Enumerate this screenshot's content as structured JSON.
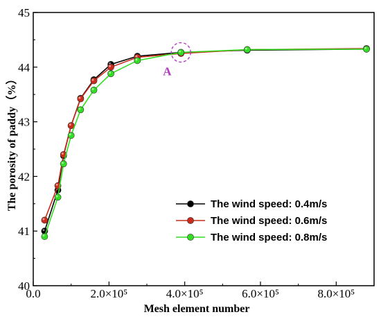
{
  "chart_data": {
    "type": "line",
    "xlabel": "Mesh element number",
    "ylabel": "The porosity of paddy（%）",
    "xlim": [
      0,
      900000
    ],
    "ylim": [
      40,
      45
    ],
    "x_ticks": [
      0,
      200000,
      400000,
      600000,
      800000
    ],
    "x_tick_labels": [
      "0.0",
      "2.0×10⁵",
      "4.0×10⁵",
      "6.0×10⁵",
      "8.0×10⁵"
    ],
    "y_ticks": [
      40,
      41,
      42,
      43,
      44,
      45
    ],
    "y_tick_labels": [
      "40",
      "41",
      "42",
      "43",
      "44",
      "45"
    ],
    "legend_position": "bottom-right",
    "series": [
      {
        "name": "The wind speed: 0.4m/s",
        "color": "#000000",
        "x": [
          30000,
          65000,
          80000,
          100000,
          125000,
          160000,
          205000,
          275000,
          390000,
          565000,
          880000
        ],
        "y": [
          41.0,
          41.75,
          42.38,
          42.93,
          43.43,
          43.77,
          44.05,
          44.2,
          44.27,
          44.31,
          44.33
        ]
      },
      {
        "name": "The wind speed: 0.6m/s",
        "color": "#cc2a1a",
        "x": [
          30000,
          65000,
          80000,
          100000,
          125000,
          160000,
          205000,
          275000,
          390000,
          565000,
          880000
        ],
        "y": [
          41.2,
          41.83,
          42.4,
          42.93,
          43.42,
          43.75,
          44.0,
          44.18,
          44.25,
          44.32,
          44.34
        ]
      },
      {
        "name": "The wind speed: 0.8m/s",
        "color": "#33dd22",
        "x": [
          30000,
          65000,
          80000,
          100000,
          125000,
          160000,
          205000,
          275000,
          390000,
          565000,
          880000
        ],
        "y": [
          40.9,
          41.62,
          42.23,
          42.75,
          43.22,
          43.58,
          43.88,
          44.12,
          44.27,
          44.32,
          44.33
        ]
      }
    ],
    "annotations": [
      {
        "text": "A",
        "x": 390000,
        "y": 44.27,
        "color": "#b03ac0"
      }
    ]
  }
}
